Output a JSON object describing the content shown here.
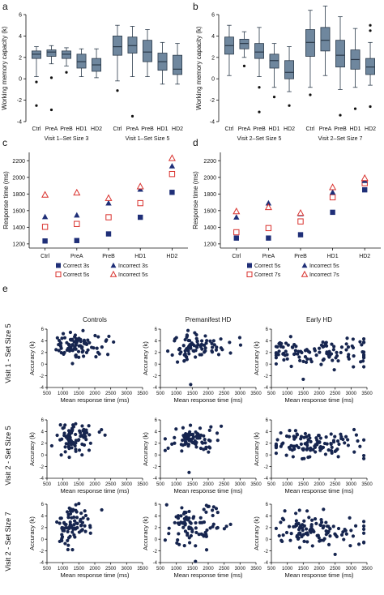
{
  "colors": {
    "box_fill": "#6f879e",
    "box_stroke": "#2b3a4a",
    "navy": "#1f2f78",
    "red": "#d9302c",
    "dot": "#16254f",
    "axis": "#111111"
  },
  "chart_data": [
    {
      "panel": "a",
      "type": "box",
      "ylabel": "Working memory capacity (k)",
      "ylim": [
        -4,
        6
      ],
      "yticks": [
        -4,
        -2,
        0,
        2,
        4,
        6
      ],
      "groups": [
        {
          "label": "Visit 1–Set Size 3",
          "categories": [
            "Ctrl",
            "PreA",
            "PreB",
            "HD1",
            "HD2"
          ],
          "boxes": [
            {
              "min": 0.2,
              "q1": 1.9,
              "median": 2.3,
              "q3": 2.6,
              "max": 3.0,
              "outliers": [
                -0.3,
                -2.5
              ]
            },
            {
              "min": 1.4,
              "q1": 2.1,
              "median": 2.5,
              "q3": 2.7,
              "max": 3.1,
              "outliers": [
                0.1,
                -2.9
              ]
            },
            {
              "min": 1.2,
              "q1": 1.9,
              "median": 2.3,
              "q3": 2.6,
              "max": 2.9,
              "outliers": [
                0.6
              ]
            },
            {
              "min": 0.2,
              "q1": 1.0,
              "median": 1.6,
              "q3": 2.3,
              "max": 2.8,
              "outliers": []
            },
            {
              "min": 0.1,
              "q1": 0.7,
              "median": 1.3,
              "q3": 1.9,
              "max": 2.8,
              "outliers": []
            }
          ]
        },
        {
          "label": "Visit 1–Set Size 5",
          "categories": [
            "Ctrl",
            "PreA",
            "PreB",
            "HD1",
            "HD2"
          ],
          "boxes": [
            {
              "min": -0.2,
              "q1": 2.2,
              "median": 3.0,
              "q3": 4.0,
              "max": 5.0,
              "outliers": [
                -1.1
              ]
            },
            {
              "min": 0.2,
              "q1": 2.4,
              "median": 3.1,
              "q3": 3.9,
              "max": 4.9,
              "outliers": [
                -3.5
              ]
            },
            {
              "min": 0.2,
              "q1": 1.6,
              "median": 2.5,
              "q3": 3.6,
              "max": 4.6,
              "outliers": []
            },
            {
              "min": -0.5,
              "q1": 0.8,
              "median": 1.6,
              "q3": 2.4,
              "max": 3.4,
              "outliers": []
            },
            {
              "min": -0.5,
              "q1": 0.4,
              "median": 0.9,
              "q3": 2.2,
              "max": 3.3,
              "outliers": []
            }
          ]
        }
      ]
    },
    {
      "panel": "b",
      "type": "box",
      "ylabel": "Working memory capacity (k)",
      "ylim": [
        -4,
        6
      ],
      "yticks": [
        -4,
        -2,
        0,
        2,
        4,
        6
      ],
      "groups": [
        {
          "label": "Visit 2–Set Size 5",
          "categories": [
            "Ctrl",
            "PreA",
            "PreB",
            "HD1",
            "HD2"
          ],
          "boxes": [
            {
              "min": 0.3,
              "q1": 2.3,
              "median": 3.1,
              "q3": 3.9,
              "max": 5.0,
              "outliers": []
            },
            {
              "min": 2.0,
              "q1": 2.8,
              "median": 3.3,
              "q3": 3.7,
              "max": 4.4,
              "outliers": [
                1.2
              ]
            },
            {
              "min": 0.2,
              "q1": 1.9,
              "median": 2.5,
              "q3": 3.3,
              "max": 4.8,
              "outliers": [
                -0.8,
                -3.1
              ]
            },
            {
              "min": -0.8,
              "q1": 1.0,
              "median": 1.7,
              "q3": 2.3,
              "max": 3.3,
              "outliers": [
                -1.7
              ]
            },
            {
              "min": -1.2,
              "q1": 0.0,
              "median": 0.6,
              "q3": 1.7,
              "max": 3.0,
              "outliers": [
                -2.5
              ]
            }
          ]
        },
        {
          "label": "Visit 2–Set Size 7",
          "categories": [
            "Ctrl",
            "PreA",
            "PreB",
            "HD1",
            "HD2"
          ],
          "boxes": [
            {
              "min": -0.8,
              "q1": 2.1,
              "median": 3.4,
              "q3": 4.6,
              "max": 6.4,
              "outliers": [
                -1.5
              ]
            },
            {
              "min": 0.3,
              "q1": 2.6,
              "median": 3.6,
              "q3": 4.8,
              "max": 6.8,
              "outliers": []
            },
            {
              "min": -1.0,
              "q1": 1.1,
              "median": 2.2,
              "q3": 3.6,
              "max": 5.8,
              "outliers": [
                -3.4
              ]
            },
            {
              "min": -0.8,
              "q1": 0.9,
              "median": 1.8,
              "q3": 2.7,
              "max": 4.7,
              "outliers": [
                -2.8
              ]
            },
            {
              "min": -0.6,
              "q1": 0.4,
              "median": 1.1,
              "q3": 1.9,
              "max": 3.4,
              "outliers": [
                4.5,
                5.0,
                -2.6
              ]
            }
          ]
        }
      ]
    },
    {
      "panel": "c",
      "type": "scatter",
      "ylabel": "Response time (ms)",
      "ylim": [
        1150,
        2300
      ],
      "yticks": [
        1200,
        1400,
        1600,
        1800,
        2000,
        2200
      ],
      "categories": [
        "Ctrl",
        "PreA",
        "PreB",
        "HD1",
        "HD2"
      ],
      "series": [
        {
          "name": "Correct 3s",
          "marker": "square-filled",
          "values": [
            1235,
            1240,
            1320,
            1520,
            1820
          ]
        },
        {
          "name": "Correct 5s",
          "marker": "square-open",
          "values": [
            1405,
            1440,
            1520,
            1690,
            2040
          ]
        },
        {
          "name": "Incorrect 3s",
          "marker": "triangle-filled",
          "values": [
            1525,
            1545,
            1690,
            1855,
            2135
          ]
        },
        {
          "name": "Incorrect 5s",
          "marker": "triangle-open",
          "values": [
            1790,
            1815,
            1750,
            1890,
            2230
          ]
        }
      ]
    },
    {
      "panel": "d",
      "type": "scatter",
      "ylabel": "Response time (ms)",
      "ylim": [
        1150,
        2300
      ],
      "yticks": [
        1200,
        1400,
        1600,
        1800,
        2000,
        2200
      ],
      "categories": [
        "Ctrl",
        "PreA",
        "PreB",
        "HD1",
        "HD2"
      ],
      "series": [
        {
          "name": "Correct 5s",
          "marker": "square-filled",
          "values": [
            1270,
            1270,
            1310,
            1580,
            1850
          ]
        },
        {
          "name": "Correct 7s",
          "marker": "square-open",
          "values": [
            1340,
            1390,
            1470,
            1760,
            1930
          ]
        },
        {
          "name": "Incorrect 5s",
          "marker": "triangle-filled",
          "values": [
            1520,
            1690,
            1560,
            1820,
            1960
          ]
        },
        {
          "name": "Incorrect 7s",
          "marker": "triangle-open",
          "values": [
            1590,
            1640,
            1570,
            1880,
            1990
          ]
        }
      ]
    },
    {
      "panel": "e",
      "type": "scatter",
      "xlabel": "Mean response time (ms)",
      "ylabel": "Accuracy (k)",
      "xlim": [
        500,
        3500
      ],
      "ylim": [
        -4,
        6
      ],
      "xticks": [
        500,
        1000,
        1500,
        2000,
        2500,
        3000,
        3500
      ],
      "yticks": [
        -4,
        -2,
        0,
        2,
        4,
        6
      ],
      "column_titles": [
        "Controls",
        "Premanifest HD",
        "Early HD"
      ],
      "row_titles": [
        "Visit 1 - Set Size 5",
        "Visit 2 - Set Size 5",
        "Visit 2 - Set Size 7"
      ],
      "cells": [
        {
          "row": 0,
          "col": 0,
          "n": 90,
          "cx": 1400,
          "sx": 240,
          "cy": 3.2,
          "sy": 1.1,
          "outliers": [
            [
              1300,
              0.1
            ],
            [
              2100,
              2.0
            ]
          ]
        },
        {
          "row": 0,
          "col": 1,
          "n": 85,
          "cx": 1500,
          "sx": 300,
          "cy": 3.0,
          "sy": 1.3,
          "outliers": [
            [
              1450,
              -3.5
            ],
            [
              2700,
              1.9
            ]
          ]
        },
        {
          "row": 0,
          "col": 2,
          "n": 110,
          "cx": 1800,
          "sx": 650,
          "cy": 1.9,
          "sy": 1.3,
          "outliers": [
            [
              1500,
              -2.6
            ],
            [
              3300,
              0.4
            ]
          ]
        },
        {
          "row": 1,
          "col": 0,
          "n": 85,
          "cx": 1300,
          "sx": 220,
          "cy": 2.9,
          "sy": 1.2,
          "outliers": [
            [
              1600,
              0.0
            ],
            [
              1200,
              -0.4
            ]
          ]
        },
        {
          "row": 1,
          "col": 1,
          "n": 80,
          "cx": 1450,
          "sx": 300,
          "cy": 2.7,
          "sy": 1.2,
          "outliers": [
            [
              1400,
              -3.0
            ],
            [
              2300,
              2.5
            ]
          ]
        },
        {
          "row": 1,
          "col": 2,
          "n": 110,
          "cx": 1800,
          "sx": 550,
          "cy": 1.8,
          "sy": 1.2,
          "outliers": [
            [
              2600,
              -0.3
            ],
            [
              3100,
              0.5
            ]
          ]
        },
        {
          "row": 2,
          "col": 0,
          "n": 85,
          "cx": 1250,
          "sx": 200,
          "cy": 2.5,
          "sy": 1.8,
          "outliers": [
            [
              1300,
              -1.8
            ],
            [
              1500,
              6.1
            ]
          ]
        },
        {
          "row": 2,
          "col": 1,
          "n": 85,
          "cx": 1500,
          "sx": 300,
          "cy": 2.6,
          "sy": 1.7,
          "outliers": [
            [
              1600,
              -3.8
            ],
            [
              2300,
              4.6
            ]
          ]
        },
        {
          "row": 2,
          "col": 2,
          "n": 110,
          "cx": 1750,
          "sx": 500,
          "cy": 1.6,
          "sy": 1.5,
          "outliers": [
            [
              2500,
              -2.6
            ],
            [
              3000,
              1.5
            ]
          ]
        }
      ]
    }
  ],
  "panel_letters": {
    "a": "a",
    "b": "b",
    "c": "c",
    "d": "d",
    "e": "e"
  }
}
